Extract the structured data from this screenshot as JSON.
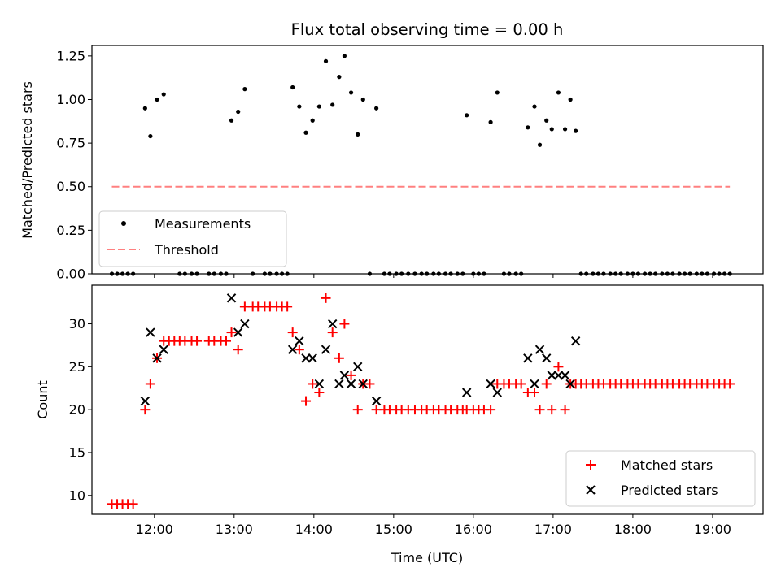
{
  "chart_data": [
    {
      "type": "scatter",
      "title": "Flux total observing time = 0.00 h",
      "xlabel": "",
      "ylabel": "Matched/Predicted stars",
      "xlim": [
        "11:13",
        "19:38"
      ],
      "ylim": [
        0,
        1.31
      ],
      "x_ticks": [
        "12:00",
        "13:00",
        "14:00",
        "15:00",
        "16:00",
        "17:00",
        "18:00",
        "19:00"
      ],
      "y_ticks": [
        "0.00",
        "0.25",
        "0.50",
        "0.75",
        "1.00",
        "1.25"
      ],
      "legend_position": "lower-left",
      "series": [
        {
          "name": "Measurements",
          "marker": "dot",
          "color": "#000000",
          "points": [
            [
              "11:28",
              0
            ],
            [
              "11:32",
              0
            ],
            [
              "11:36",
              0
            ],
            [
              "11:40",
              0
            ],
            [
              "11:44",
              0
            ],
            [
              "11:53",
              0.95
            ],
            [
              "11:57",
              0.79
            ],
            [
              "12:02",
              1.0
            ],
            [
              "12:07",
              1.03
            ],
            [
              "12:19",
              0
            ],
            [
              "12:23",
              0
            ],
            [
              "12:28",
              0
            ],
            [
              "12:32",
              0
            ],
            [
              "12:41",
              0
            ],
            [
              "12:45",
              0
            ],
            [
              "12:50",
              0
            ],
            [
              "12:54",
              0
            ],
            [
              "12:58",
              0.88
            ],
            [
              "13:03",
              0.93
            ],
            [
              "13:08",
              1.06
            ],
            [
              "13:14",
              0
            ],
            [
              "13:23",
              0
            ],
            [
              "13:27",
              0
            ],
            [
              "13:32",
              0
            ],
            [
              "13:36",
              0
            ],
            [
              "13:40",
              0
            ],
            [
              "13:44",
              1.07
            ],
            [
              "13:49",
              0.96
            ],
            [
              "13:54",
              0.81
            ],
            [
              "13:59",
              0.88
            ],
            [
              "14:04",
              0.96
            ],
            [
              "14:09",
              1.22
            ],
            [
              "14:14",
              0.97
            ],
            [
              "14:19",
              1.13
            ],
            [
              "14:23",
              1.25
            ],
            [
              "14:28",
              1.04
            ],
            [
              "14:33",
              0.8
            ],
            [
              "14:37",
              1.0
            ],
            [
              "14:42",
              0
            ],
            [
              "14:47",
              0.95
            ],
            [
              "14:53",
              0
            ],
            [
              "14:57",
              0
            ],
            [
              "15:02",
              0
            ],
            [
              "15:06",
              0
            ],
            [
              "15:11",
              0
            ],
            [
              "15:16",
              0
            ],
            [
              "15:21",
              0
            ],
            [
              "15:25",
              0
            ],
            [
              "15:30",
              0
            ],
            [
              "15:34",
              0
            ],
            [
              "15:39",
              0
            ],
            [
              "15:43",
              0
            ],
            [
              "15:48",
              0
            ],
            [
              "15:52",
              0
            ],
            [
              "15:55",
              0.91
            ],
            [
              "16:00",
              0
            ],
            [
              "16:04",
              0
            ],
            [
              "16:08",
              0
            ],
            [
              "16:13",
              0.87
            ],
            [
              "16:18",
              1.04
            ],
            [
              "16:23",
              0
            ],
            [
              "16:27",
              0
            ],
            [
              "16:32",
              0
            ],
            [
              "16:36",
              0
            ],
            [
              "16:41",
              0.84
            ],
            [
              "16:46",
              0.96
            ],
            [
              "16:50",
              0.74
            ],
            [
              "16:55",
              0.88
            ],
            [
              "16:59",
              0.83
            ],
            [
              "17:04",
              1.04
            ],
            [
              "17:09",
              0.83
            ],
            [
              "17:13",
              1.0
            ],
            [
              "17:17",
              0.82
            ],
            [
              "17:21",
              0
            ],
            [
              "17:25",
              0
            ],
            [
              "17:30",
              0
            ],
            [
              "17:34",
              0
            ],
            [
              "17:38",
              0
            ],
            [
              "17:43",
              0
            ],
            [
              "17:47",
              0
            ],
            [
              "17:51",
              0
            ],
            [
              "17:56",
              0
            ],
            [
              "18:00",
              0
            ],
            [
              "18:04",
              0
            ],
            [
              "18:09",
              0
            ],
            [
              "18:13",
              0
            ],
            [
              "18:17",
              0
            ],
            [
              "18:22",
              0
            ],
            [
              "18:26",
              0
            ],
            [
              "18:30",
              0
            ],
            [
              "18:35",
              0
            ],
            [
              "18:39",
              0
            ],
            [
              "18:43",
              0
            ],
            [
              "18:48",
              0
            ],
            [
              "18:52",
              0
            ],
            [
              "18:56",
              0
            ],
            [
              "19:01",
              0
            ],
            [
              "19:05",
              0
            ],
            [
              "19:09",
              0
            ],
            [
              "19:13",
              0
            ]
          ]
        },
        {
          "name": "Threshold",
          "marker": "dashed-line",
          "color": "#ff8080",
          "points": [
            [
              "11:28",
              0.5
            ],
            [
              "19:13",
              0.5
            ]
          ]
        }
      ]
    },
    {
      "type": "scatter",
      "title": "",
      "xlabel": "Time (UTC)",
      "ylabel": "Count",
      "xlim": [
        "11:13",
        "19:38"
      ],
      "ylim": [
        7.8,
        34.5
      ],
      "x_ticks": [
        "12:00",
        "13:00",
        "14:00",
        "15:00",
        "16:00",
        "17:00",
        "18:00",
        "19:00"
      ],
      "y_ticks": [
        "10",
        "15",
        "20",
        "25",
        "30"
      ],
      "legend_position": "lower-right",
      "series": [
        {
          "name": "Matched stars",
          "marker": "plus",
          "color": "#ff0000",
          "points": [
            [
              "11:28",
              9
            ],
            [
              "11:32",
              9
            ],
            [
              "11:36",
              9
            ],
            [
              "11:40",
              9
            ],
            [
              "11:44",
              9
            ],
            [
              "11:53",
              20
            ],
            [
              "11:57",
              23
            ],
            [
              "12:02",
              26
            ],
            [
              "12:07",
              28
            ],
            [
              "12:11",
              28
            ],
            [
              "12:15",
              28
            ],
            [
              "12:19",
              28
            ],
            [
              "12:23",
              28
            ],
            [
              "12:28",
              28
            ],
            [
              "12:32",
              28
            ],
            [
              "12:41",
              28
            ],
            [
              "12:45",
              28
            ],
            [
              "12:50",
              28
            ],
            [
              "12:54",
              28
            ],
            [
              "12:58",
              29
            ],
            [
              "13:03",
              27
            ],
            [
              "13:08",
              32
            ],
            [
              "13:14",
              32
            ],
            [
              "13:18",
              32
            ],
            [
              "13:23",
              32
            ],
            [
              "13:27",
              32
            ],
            [
              "13:32",
              32
            ],
            [
              "13:36",
              32
            ],
            [
              "13:40",
              32
            ],
            [
              "13:44",
              29
            ],
            [
              "13:49",
              27
            ],
            [
              "13:54",
              21
            ],
            [
              "13:59",
              23
            ],
            [
              "14:04",
              22
            ],
            [
              "14:09",
              33
            ],
            [
              "14:14",
              29
            ],
            [
              "14:19",
              26
            ],
            [
              "14:23",
              30
            ],
            [
              "14:28",
              24
            ],
            [
              "14:33",
              20
            ],
            [
              "14:37",
              23
            ],
            [
              "14:42",
              23
            ],
            [
              "14:47",
              20
            ],
            [
              "14:53",
              20
            ],
            [
              "14:57",
              20
            ],
            [
              "15:02",
              20
            ],
            [
              "15:06",
              20
            ],
            [
              "15:11",
              20
            ],
            [
              "15:16",
              20
            ],
            [
              "15:21",
              20
            ],
            [
              "15:25",
              20
            ],
            [
              "15:30",
              20
            ],
            [
              "15:34",
              20
            ],
            [
              "15:39",
              20
            ],
            [
              "15:43",
              20
            ],
            [
              "15:48",
              20
            ],
            [
              "15:52",
              20
            ],
            [
              "15:55",
              20
            ],
            [
              "16:00",
              20
            ],
            [
              "16:04",
              20
            ],
            [
              "16:08",
              20
            ],
            [
              "16:13",
              20
            ],
            [
              "16:18",
              23
            ],
            [
              "16:23",
              23
            ],
            [
              "16:27",
              23
            ],
            [
              "16:32",
              23
            ],
            [
              "16:36",
              23
            ],
            [
              "16:41",
              22
            ],
            [
              "16:46",
              22
            ],
            [
              "16:50",
              20
            ],
            [
              "16:55",
              23
            ],
            [
              "16:59",
              20
            ],
            [
              "17:04",
              25
            ],
            [
              "17:09",
              20
            ],
            [
              "17:13",
              23
            ],
            [
              "17:17",
              23
            ],
            [
              "17:21",
              23
            ],
            [
              "17:25",
              23
            ],
            [
              "17:30",
              23
            ],
            [
              "17:34",
              23
            ],
            [
              "17:38",
              23
            ],
            [
              "17:43",
              23
            ],
            [
              "17:47",
              23
            ],
            [
              "17:51",
              23
            ],
            [
              "17:56",
              23
            ],
            [
              "18:00",
              23
            ],
            [
              "18:04",
              23
            ],
            [
              "18:09",
              23
            ],
            [
              "18:13",
              23
            ],
            [
              "18:17",
              23
            ],
            [
              "18:22",
              23
            ],
            [
              "18:26",
              23
            ],
            [
              "18:30",
              23
            ],
            [
              "18:35",
              23
            ],
            [
              "18:39",
              23
            ],
            [
              "18:43",
              23
            ],
            [
              "18:48",
              23
            ],
            [
              "18:52",
              23
            ],
            [
              "18:56",
              23
            ],
            [
              "19:01",
              23
            ],
            [
              "19:05",
              23
            ],
            [
              "19:09",
              23
            ],
            [
              "19:13",
              23
            ]
          ]
        },
        {
          "name": "Predicted stars",
          "marker": "x",
          "color": "#000000",
          "points": [
            [
              "11:53",
              21
            ],
            [
              "11:57",
              29
            ],
            [
              "12:02",
              26
            ],
            [
              "12:07",
              27
            ],
            [
              "12:58",
              33
            ],
            [
              "13:03",
              29
            ],
            [
              "13:08",
              30
            ],
            [
              "13:44",
              27
            ],
            [
              "13:49",
              28
            ],
            [
              "13:54",
              26
            ],
            [
              "13:59",
              26
            ],
            [
              "14:04",
              23
            ],
            [
              "14:09",
              27
            ],
            [
              "14:14",
              30
            ],
            [
              "14:19",
              23
            ],
            [
              "14:23",
              24
            ],
            [
              "14:28",
              23
            ],
            [
              "14:33",
              25
            ],
            [
              "14:37",
              23
            ],
            [
              "14:47",
              21
            ],
            [
              "15:55",
              22
            ],
            [
              "16:13",
              23
            ],
            [
              "16:18",
              22
            ],
            [
              "16:41",
              26
            ],
            [
              "16:46",
              23
            ],
            [
              "16:50",
              27
            ],
            [
              "16:55",
              26
            ],
            [
              "16:59",
              24
            ],
            [
              "17:04",
              24
            ],
            [
              "17:09",
              24
            ],
            [
              "17:13",
              23
            ],
            [
              "17:17",
              28
            ]
          ]
        }
      ]
    }
  ]
}
